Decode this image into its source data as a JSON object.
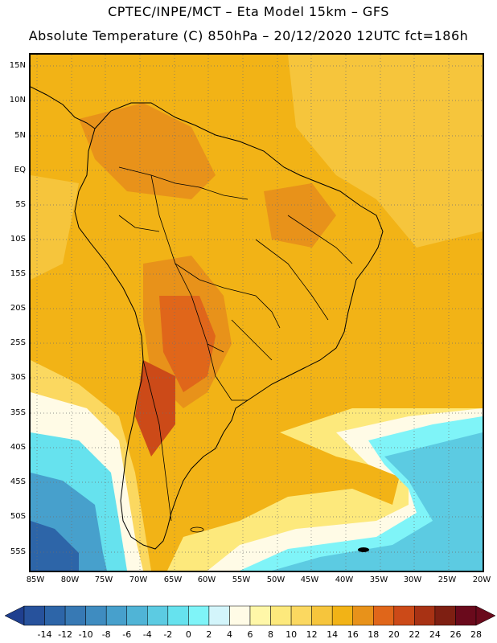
{
  "header": {
    "line1": "CPTEC/INPE/MCT –  Eta Model 15km – GFS",
    "line2": "Absolute Temperature (C) 850hPa – 20/12/2020 12UTC fct=186h"
  },
  "axes": {
    "latitude_labels": [
      "15N",
      "10N",
      "5N",
      "EQ",
      "5S",
      "10S",
      "15S",
      "20S",
      "25S",
      "30S",
      "35S",
      "40S",
      "45S",
      "50S",
      "55S"
    ],
    "longitude_labels": [
      "85W",
      "80W",
      "75W",
      "70W",
      "65W",
      "60W",
      "55W",
      "50W",
      "45W",
      "40W",
      "35W",
      "30W",
      "25W",
      "20W"
    ]
  },
  "colorbar": {
    "labels": [
      "-14",
      "-12",
      "-10",
      "-8",
      "-6",
      "-4",
      "-2",
      "0",
      "2",
      "4",
      "6",
      "8",
      "10",
      "12",
      "14",
      "16",
      "18",
      "20",
      "22",
      "24",
      "26",
      "28"
    ],
    "colors": [
      "#1f3f8f",
      "#27529c",
      "#2d65a8",
      "#3779b4",
      "#3f8cc0",
      "#47a0cc",
      "#50b4d6",
      "#5ccbe2",
      "#66e2ee",
      "#7ff4f8",
      "#d3f5fb",
      "#fffbe6",
      "#fff7a8",
      "#fde97c",
      "#fbd860",
      "#f6c53c",
      "#f2b316",
      "#e8921a",
      "#e0661a",
      "#cc4a18",
      "#a83214",
      "#7e1f12",
      "#6a0a1c"
    ]
  },
  "map": {
    "ocean_colors": {
      "warm": "#f0b429",
      "mid": "#f5c842",
      "cool": "#fde87a",
      "cold1": "#5ccbe2",
      "cold2": "#3f8cc0"
    }
  }
}
